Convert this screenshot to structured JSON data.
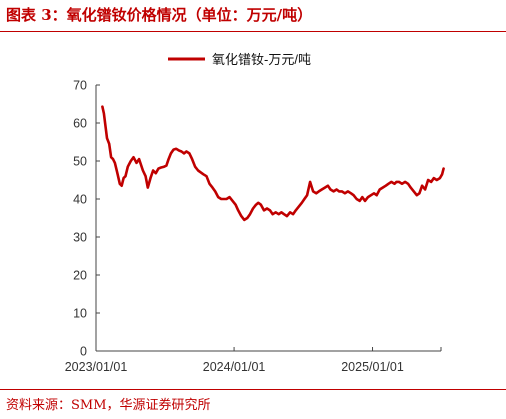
{
  "figure": {
    "title": "图表 3：氧化镨钕价格情况（单位：万元/吨）",
    "source": "资料来源：SMM，华源证券研究所"
  },
  "chart_data": {
    "type": "line",
    "title": "",
    "xlabel": "",
    "ylabel": "",
    "ylim": [
      0,
      70
    ],
    "y_ticks": [
      "0",
      "10",
      "20",
      "30",
      "40",
      "50",
      "60",
      "70"
    ],
    "x_ticks": [
      "2023/01/01",
      "2024/01/01",
      "2025/01/01"
    ],
    "xlim": [
      "2023-01-01",
      "2025-07-01"
    ],
    "grid": false,
    "legend_position": "top-center",
    "series": [
      {
        "name": "氧化镨钕-万元/吨",
        "color": "#c00000",
        "x": [
          "2023-01-18",
          "2023-01-22",
          "2023-01-30",
          "2023-02-05",
          "2023-02-10",
          "2023-02-15",
          "2023-02-20",
          "2023-02-26",
          "2023-03-05",
          "2023-03-10",
          "2023-03-15",
          "2023-03-20",
          "2023-03-26",
          "2023-04-03",
          "2023-04-10",
          "2023-04-18",
          "2023-04-25",
          "2023-05-05",
          "2023-05-12",
          "2023-05-18",
          "2023-05-25",
          "2023-06-01",
          "2023-06-08",
          "2023-06-15",
          "2023-06-22",
          "2023-06-30",
          "2023-07-06",
          "2023-07-12",
          "2023-07-18",
          "2023-07-25",
          "2023-08-01",
          "2023-08-08",
          "2023-08-15",
          "2023-08-22",
          "2023-08-28",
          "2023-09-05",
          "2023-09-12",
          "2023-09-20",
          "2023-09-28",
          "2023-10-05",
          "2023-10-12",
          "2023-10-20",
          "2023-10-28",
          "2023-11-05",
          "2023-11-12",
          "2023-11-20",
          "2023-11-28",
          "2023-12-05",
          "2023-12-12",
          "2023-12-20",
          "2023-12-28",
          "2024-01-05",
          "2024-01-12",
          "2024-01-20",
          "2024-01-28",
          "2024-02-05",
          "2024-02-12",
          "2024-02-20",
          "2024-02-28",
          "2024-03-05",
          "2024-03-12",
          "2024-03-20",
          "2024-03-28",
          "2024-04-05",
          "2024-04-12",
          "2024-04-20",
          "2024-04-28",
          "2024-05-05",
          "2024-05-12",
          "2024-05-20",
          "2024-05-28",
          "2024-06-05",
          "2024-06-12",
          "2024-06-20",
          "2024-06-28",
          "2024-07-05",
          "2024-07-12",
          "2024-07-20",
          "2024-07-28",
          "2024-08-05",
          "2024-08-12",
          "2024-08-20",
          "2024-08-28",
          "2024-09-05",
          "2024-09-12",
          "2024-09-20",
          "2024-09-28",
          "2024-10-05",
          "2024-10-12",
          "2024-10-20",
          "2024-10-28",
          "2024-11-05",
          "2024-11-12",
          "2024-11-20",
          "2024-11-28",
          "2024-12-05",
          "2024-12-12",
          "2024-12-20",
          "2024-12-28",
          "2025-01-05",
          "2025-01-12",
          "2025-01-20",
          "2025-01-28",
          "2025-02-05",
          "2025-02-12",
          "2025-02-20",
          "2025-02-28",
          "2025-03-05",
          "2025-03-12",
          "2025-03-20",
          "2025-03-28",
          "2025-04-05",
          "2025-04-12",
          "2025-04-20",
          "2025-04-28",
          "2025-05-05",
          "2025-05-12",
          "2025-05-20",
          "2025-05-28",
          "2025-06-05",
          "2025-06-12",
          "2025-06-20",
          "2025-06-28",
          "2025-07-04",
          "2025-07-08"
        ],
        "values": [
          64.3,
          62.5,
          56.0,
          54.5,
          51.0,
          50.5,
          49.5,
          47.0,
          44.0,
          43.5,
          45.5,
          46.0,
          48.5,
          50.0,
          51.0,
          49.5,
          50.5,
          47.5,
          46.0,
          43.0,
          45.5,
          47.5,
          46.8,
          48.0,
          48.3,
          48.5,
          48.8,
          50.5,
          52.0,
          53.0,
          53.2,
          52.8,
          52.5,
          52.0,
          52.5,
          52.0,
          50.5,
          48.5,
          47.5,
          47.0,
          46.5,
          46.0,
          44.0,
          43.0,
          42.0,
          40.5,
          40.0,
          40.0,
          40.0,
          40.5,
          39.5,
          38.5,
          37.0,
          35.5,
          34.5,
          35.0,
          36.0,
          37.5,
          38.5,
          39.0,
          38.5,
          37.0,
          37.5,
          37.0,
          36.0,
          36.5,
          36.0,
          36.5,
          36.0,
          35.5,
          36.5,
          36.0,
          37.0,
          38.0,
          39.0,
          40.0,
          41.0,
          44.5,
          42.0,
          41.5,
          42.0,
          42.5,
          43.0,
          43.5,
          42.5,
          42.0,
          42.5,
          42.0,
          42.0,
          41.5,
          42.0,
          41.5,
          41.0,
          40.0,
          39.5,
          40.5,
          39.5,
          40.5,
          41.0,
          41.5,
          41.0,
          42.5,
          43.0,
          43.5,
          44.0,
          44.5,
          44.0,
          44.5,
          44.5,
          44.0,
          44.5,
          44.0,
          43.0,
          42.0,
          41.0,
          41.5,
          43.5,
          42.5,
          45.0,
          44.5,
          45.5,
          45.0,
          45.5,
          46.5,
          48.0
        ]
      }
    ]
  }
}
